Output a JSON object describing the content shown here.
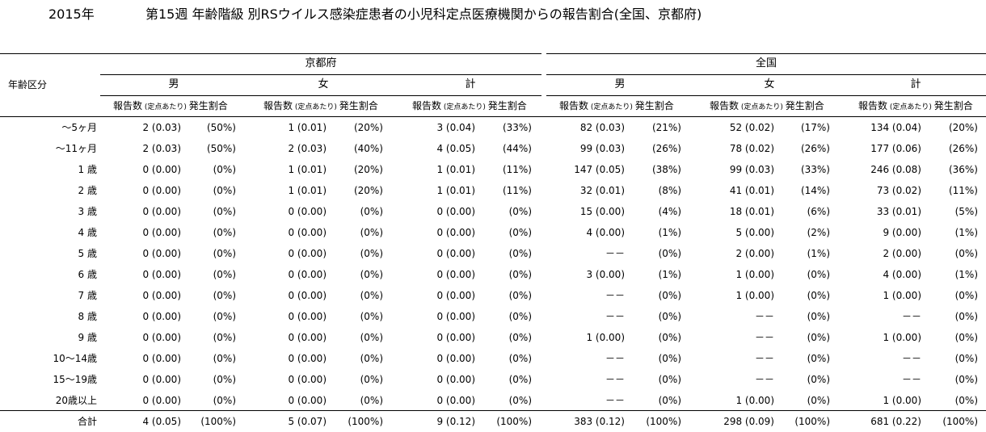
{
  "year": "2015年",
  "title": "第15週 年齢階級 別RSウイルス感染症患者の小児科定点医療機関からの報告割合(全国、京都府)",
  "header": {
    "age_class": "年齢区分",
    "regions": [
      "京都府",
      "全国"
    ],
    "sexes": [
      "男",
      "女",
      "計"
    ],
    "sub_count": "報告数",
    "sub_per_site": "(定点あたり)",
    "sub_rate": "発生割合"
  },
  "rows": [
    {
      "label": "～5ヶ月",
      "cells": [
        [
          "2 (0.03)",
          "(50%)"
        ],
        [
          "1 (0.01)",
          "(20%)"
        ],
        [
          "3 (0.04)",
          "(33%)"
        ],
        [
          "82 (0.03)",
          "(21%)"
        ],
        [
          "52 (0.02)",
          "(17%)"
        ],
        [
          "134 (0.04)",
          "(20%)"
        ]
      ]
    },
    {
      "label": "～11ヶ月",
      "cells": [
        [
          "2 (0.03)",
          "(50%)"
        ],
        [
          "2 (0.03)",
          "(40%)"
        ],
        [
          "4 (0.05)",
          "(44%)"
        ],
        [
          "99 (0.03)",
          "(26%)"
        ],
        [
          "78 (0.02)",
          "(26%)"
        ],
        [
          "177 (0.06)",
          "(26%)"
        ]
      ]
    },
    {
      "label": "1 歳",
      "cells": [
        [
          "0 (0.00)",
          "(0%)"
        ],
        [
          "1 (0.01)",
          "(20%)"
        ],
        [
          "1 (0.01)",
          "(11%)"
        ],
        [
          "147 (0.05)",
          "(38%)"
        ],
        [
          "99 (0.03)",
          "(33%)"
        ],
        [
          "246 (0.08)",
          "(36%)"
        ]
      ]
    },
    {
      "label": "2 歳",
      "cells": [
        [
          "0 (0.00)",
          "(0%)"
        ],
        [
          "1 (0.01)",
          "(20%)"
        ],
        [
          "1 (0.01)",
          "(11%)"
        ],
        [
          "32 (0.01)",
          "(8%)"
        ],
        [
          "41 (0.01)",
          "(14%)"
        ],
        [
          "73 (0.02)",
          "(11%)"
        ]
      ]
    },
    {
      "label": "3 歳",
      "cells": [
        [
          "0 (0.00)",
          "(0%)"
        ],
        [
          "0 (0.00)",
          "(0%)"
        ],
        [
          "0 (0.00)",
          "(0%)"
        ],
        [
          "15 (0.00)",
          "(4%)"
        ],
        [
          "18 (0.01)",
          "(6%)"
        ],
        [
          "33 (0.01)",
          "(5%)"
        ]
      ]
    },
    {
      "label": "4 歳",
      "cells": [
        [
          "0 (0.00)",
          "(0%)"
        ],
        [
          "0 (0.00)",
          "(0%)"
        ],
        [
          "0 (0.00)",
          "(0%)"
        ],
        [
          "4 (0.00)",
          "(1%)"
        ],
        [
          "5 (0.00)",
          "(2%)"
        ],
        [
          "9 (0.00)",
          "(1%)"
        ]
      ]
    },
    {
      "label": "5 歳",
      "cells": [
        [
          "0 (0.00)",
          "(0%)"
        ],
        [
          "0 (0.00)",
          "(0%)"
        ],
        [
          "0 (0.00)",
          "(0%)"
        ],
        [
          "－－",
          "(0%)"
        ],
        [
          "2 (0.00)",
          "(1%)"
        ],
        [
          "2 (0.00)",
          "(0%)"
        ]
      ]
    },
    {
      "label": "6 歳",
      "cells": [
        [
          "0 (0.00)",
          "(0%)"
        ],
        [
          "0 (0.00)",
          "(0%)"
        ],
        [
          "0 (0.00)",
          "(0%)"
        ],
        [
          "3 (0.00)",
          "(1%)"
        ],
        [
          "1 (0.00)",
          "(0%)"
        ],
        [
          "4 (0.00)",
          "(1%)"
        ]
      ]
    },
    {
      "label": "7 歳",
      "cells": [
        [
          "0 (0.00)",
          "(0%)"
        ],
        [
          "0 (0.00)",
          "(0%)"
        ],
        [
          "0 (0.00)",
          "(0%)"
        ],
        [
          "－－",
          "(0%)"
        ],
        [
          "1 (0.00)",
          "(0%)"
        ],
        [
          "1 (0.00)",
          "(0%)"
        ]
      ]
    },
    {
      "label": "8 歳",
      "cells": [
        [
          "0 (0.00)",
          "(0%)"
        ],
        [
          "0 (0.00)",
          "(0%)"
        ],
        [
          "0 (0.00)",
          "(0%)"
        ],
        [
          "－－",
          "(0%)"
        ],
        [
          "－－",
          "(0%)"
        ],
        [
          "－－",
          "(0%)"
        ]
      ]
    },
    {
      "label": "9 歳",
      "cells": [
        [
          "0 (0.00)",
          "(0%)"
        ],
        [
          "0 (0.00)",
          "(0%)"
        ],
        [
          "0 (0.00)",
          "(0%)"
        ],
        [
          "1 (0.00)",
          "(0%)"
        ],
        [
          "－－",
          "(0%)"
        ],
        [
          "1 (0.00)",
          "(0%)"
        ]
      ]
    },
    {
      "label": "10～14歳",
      "cells": [
        [
          "0 (0.00)",
          "(0%)"
        ],
        [
          "0 (0.00)",
          "(0%)"
        ],
        [
          "0 (0.00)",
          "(0%)"
        ],
        [
          "－－",
          "(0%)"
        ],
        [
          "－－",
          "(0%)"
        ],
        [
          "－－",
          "(0%)"
        ]
      ]
    },
    {
      "label": "15～19歳",
      "cells": [
        [
          "0 (0.00)",
          "(0%)"
        ],
        [
          "0 (0.00)",
          "(0%)"
        ],
        [
          "0 (0.00)",
          "(0%)"
        ],
        [
          "－－",
          "(0%)"
        ],
        [
          "－－",
          "(0%)"
        ],
        [
          "－－",
          "(0%)"
        ]
      ]
    },
    {
      "label": "20歳以上",
      "cells": [
        [
          "0 (0.00)",
          "(0%)"
        ],
        [
          "0 (0.00)",
          "(0%)"
        ],
        [
          "0 (0.00)",
          "(0%)"
        ],
        [
          "－－",
          "(0%)"
        ],
        [
          "1 (0.00)",
          "(0%)"
        ],
        [
          "1 (0.00)",
          "(0%)"
        ]
      ]
    }
  ],
  "total": {
    "label": "合計",
    "cells": [
      [
        "4 (0.05)",
        "(100%)"
      ],
      [
        "5 (0.07)",
        "(100%)"
      ],
      [
        "9 (0.12)",
        "(100%)"
      ],
      [
        "383 (0.12)",
        "(100%)"
      ],
      [
        "298 (0.09)",
        "(100%)"
      ],
      [
        "681 (0.22)",
        "(100%)"
      ]
    ]
  }
}
